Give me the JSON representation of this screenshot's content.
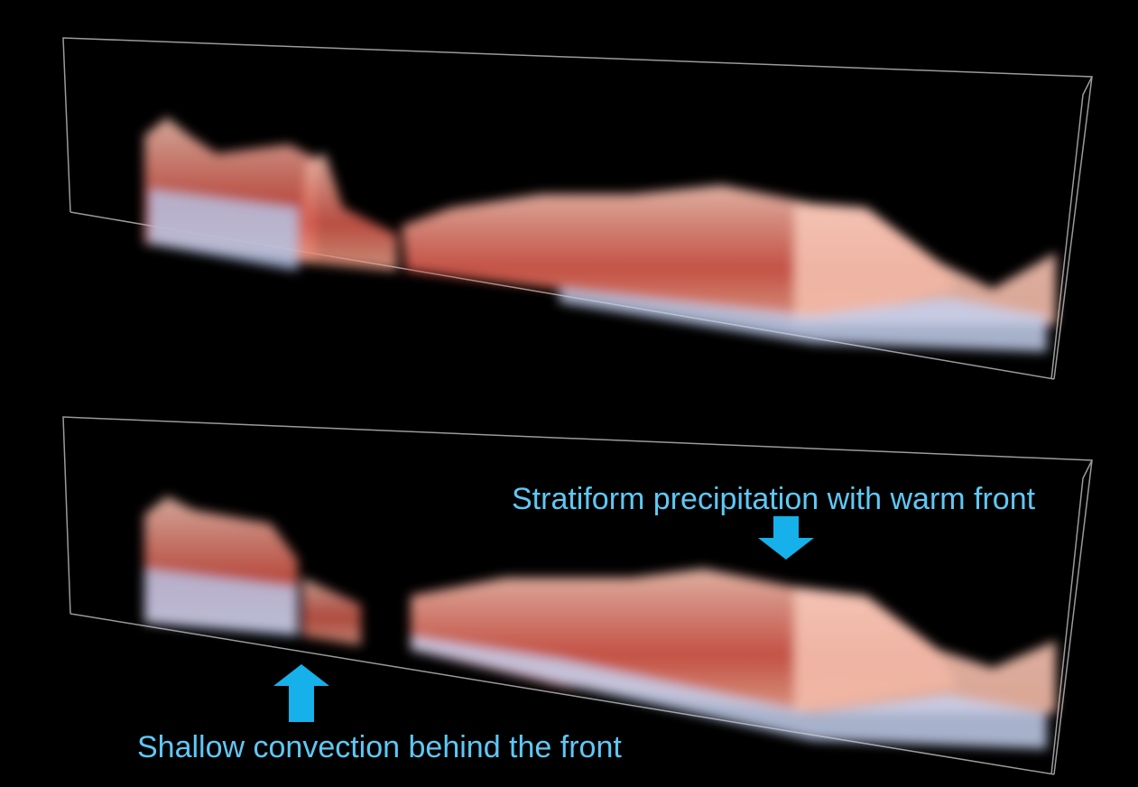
{
  "annotations": {
    "stratiform": "Stratiform precipitation with warm front",
    "shallow": "Shallow convection behind the front"
  }
}
